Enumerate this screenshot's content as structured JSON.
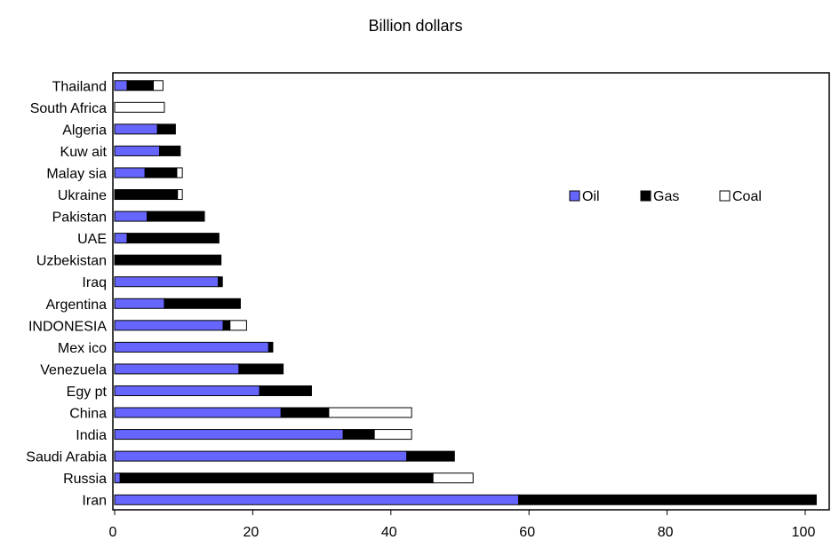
{
  "chart_data": {
    "type": "bar",
    "orientation": "horizontal",
    "stacked": true,
    "title": "Billion dollars",
    "categories": [
      "Iran",
      "Russia",
      "Saudi Arabia",
      "India",
      "China",
      "Egy pt",
      "Venezuela",
      "Mex ico",
      "INDONESIA",
      "Argentina",
      "Iraq",
      "Uzbekistan",
      "UAE",
      "Pakistan",
      "Ukraine",
      "Malay sia",
      "Kuw ait",
      "Algeria",
      "South Africa",
      "Thailand"
    ],
    "series": [
      {
        "name": "Oil",
        "color": "#6666ff",
        "values": [
          58.5,
          0.8,
          42.3,
          33.1,
          24.1,
          21.0,
          18.0,
          22.3,
          15.7,
          7.2,
          15.0,
          0,
          1.8,
          4.7,
          0,
          4.4,
          6.5,
          6.2,
          0,
          1.8
        ]
      },
      {
        "name": "Gas",
        "color": "#000000",
        "values": [
          43.1,
          45.3,
          6.9,
          4.5,
          6.9,
          7.5,
          6.4,
          0.6,
          1.0,
          11.0,
          0.6,
          15.4,
          13.3,
          8.3,
          9.1,
          4.6,
          3.0,
          2.6,
          0,
          3.8
        ]
      },
      {
        "name": "Coal",
        "color": "#ffffff",
        "values": [
          0,
          5.8,
          0,
          5.4,
          12.0,
          0,
          0,
          0,
          2.4,
          0,
          0,
          0,
          0,
          0,
          0.7,
          0.8,
          0,
          0,
          7.2,
          1.4
        ]
      }
    ],
    "xlim": [
      0,
      100
    ],
    "xticks": [
      "0",
      "20",
      "40",
      "60",
      "80",
      "100"
    ],
    "legend_position": "right",
    "grid": false
  }
}
